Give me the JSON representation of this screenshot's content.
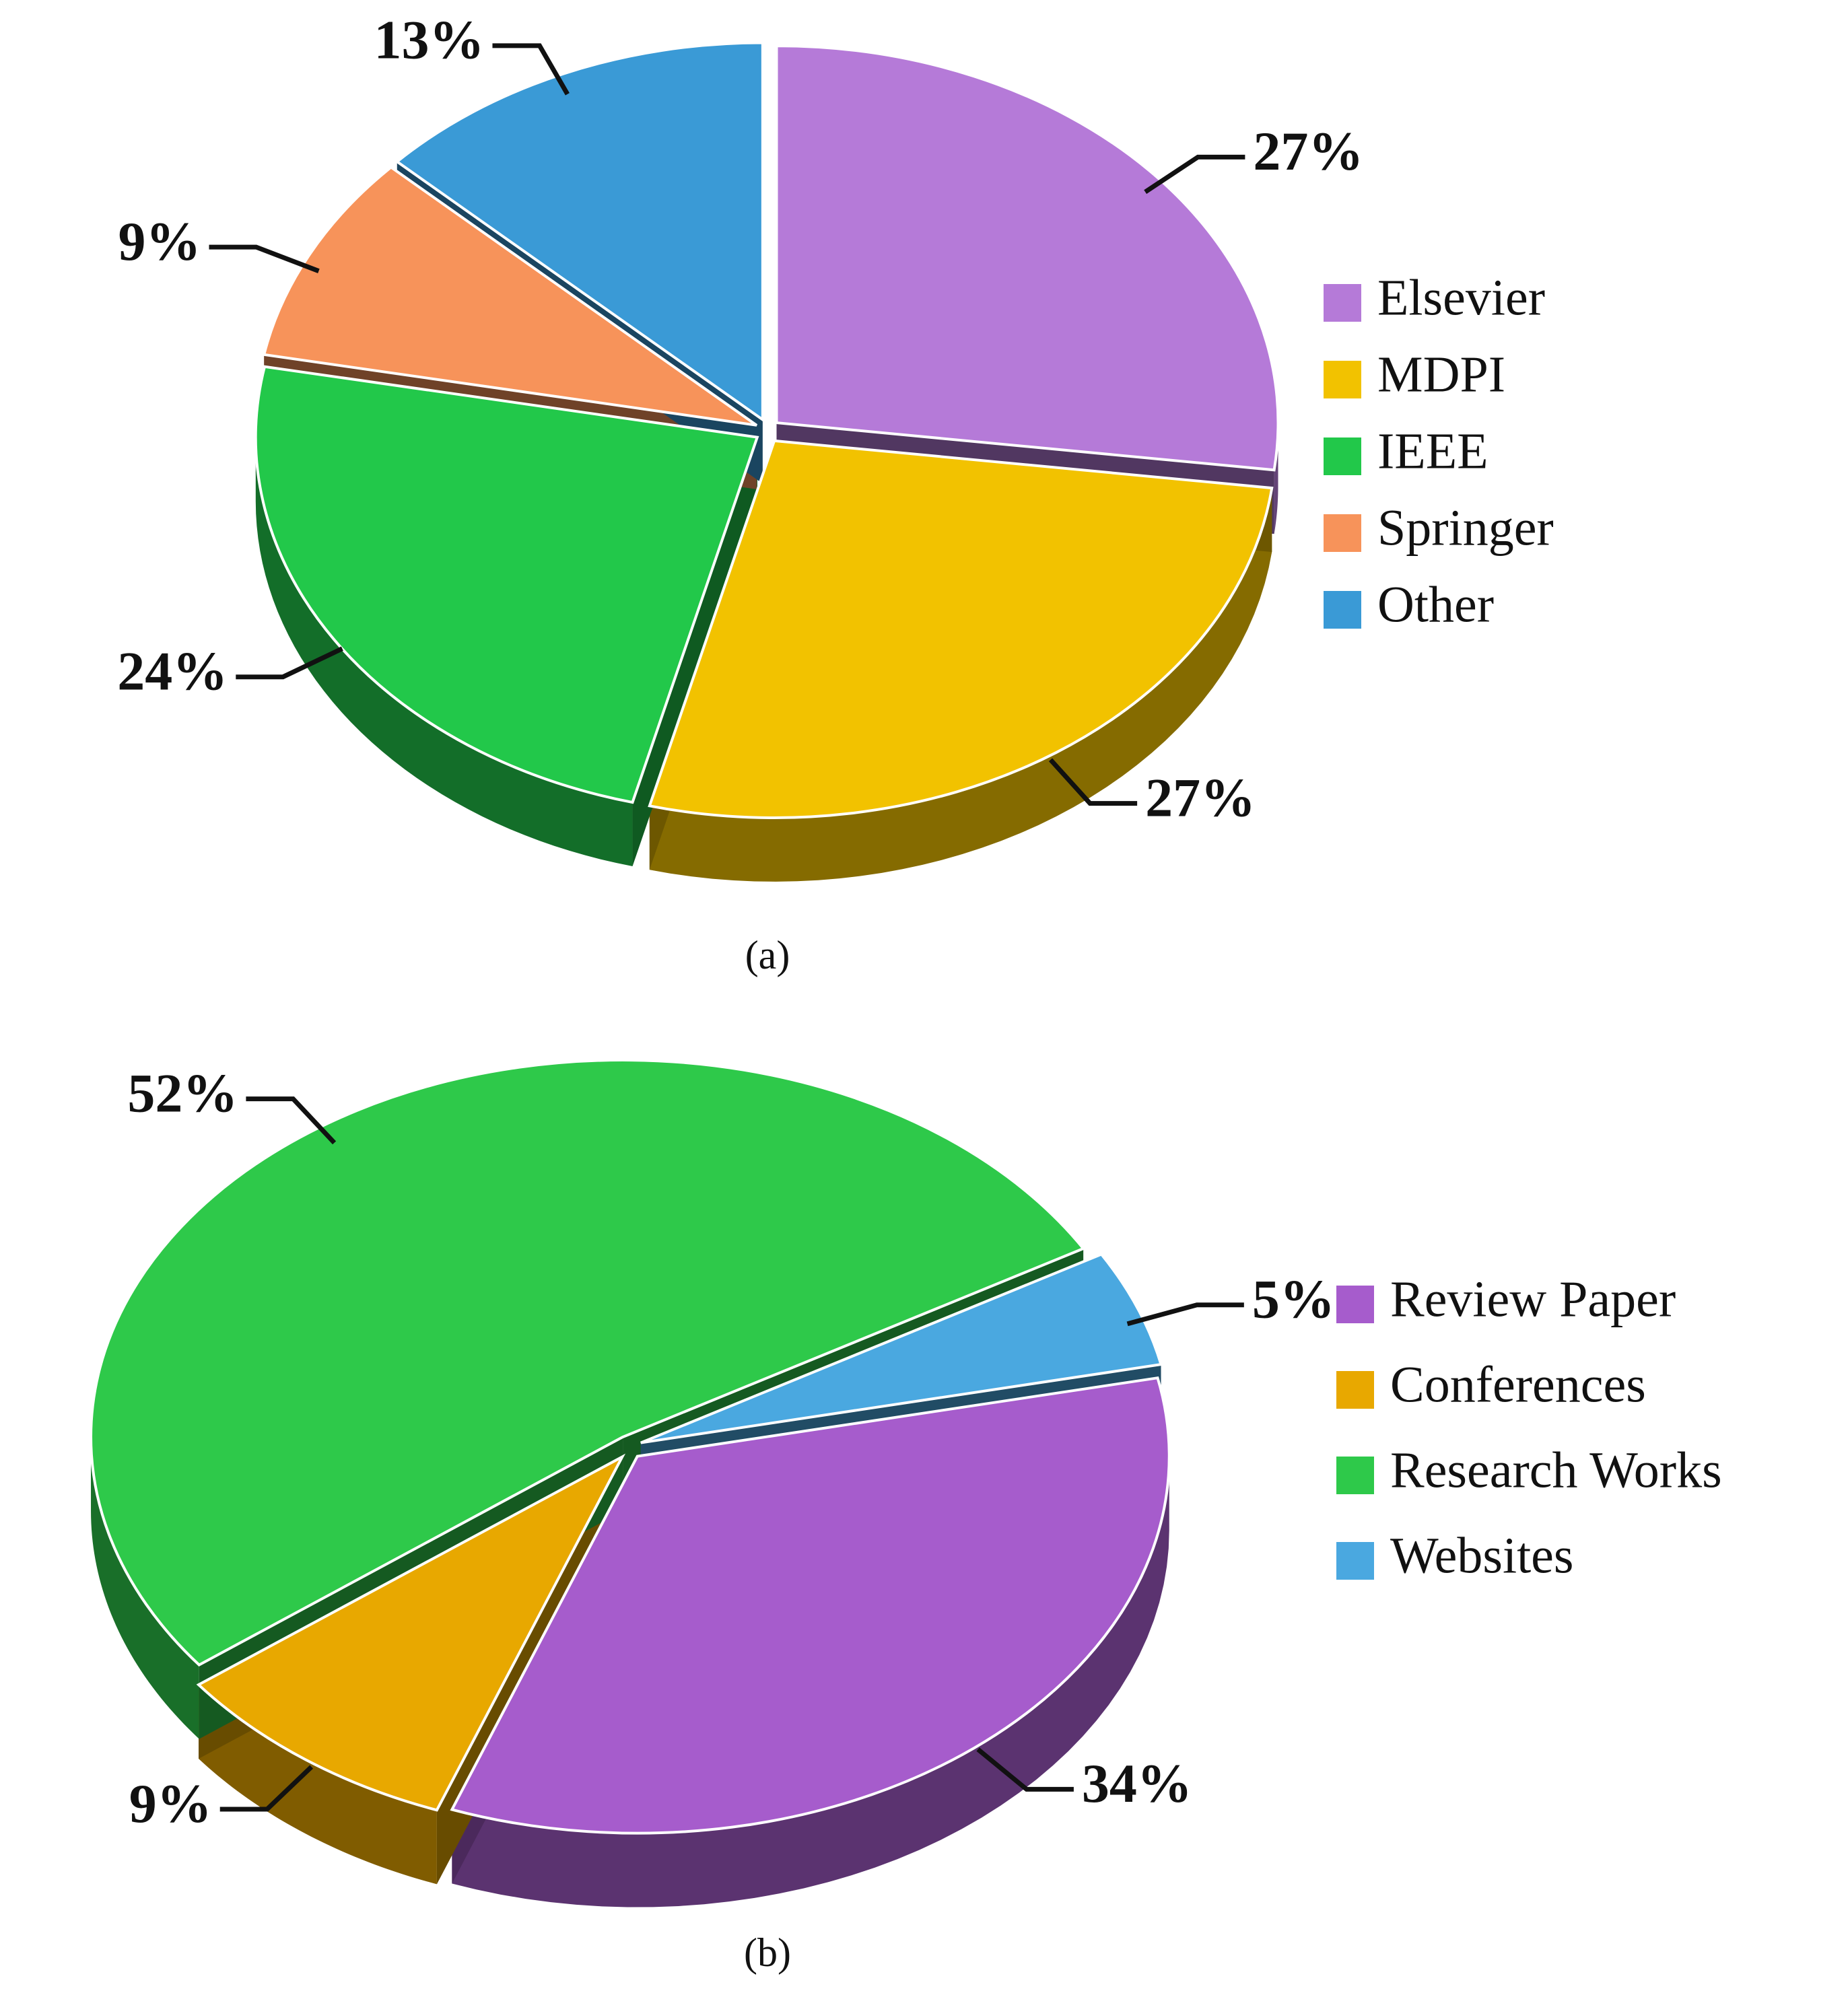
{
  "chart_data": [
    {
      "type": "pie",
      "caption": "(a)",
      "categories": [
        "Elsevier",
        "MDPI",
        "IEEE",
        "Springer",
        "Other"
      ],
      "values": [
        27,
        27,
        24,
        9,
        13
      ],
      "value_labels": [
        "27%",
        "27%",
        "24%",
        "9%",
        "13%"
      ],
      "colors": [
        "#b57ad8",
        "#f2c200",
        "#22c84a",
        "#f7935a",
        "#3a9ad6"
      ]
    },
    {
      "type": "pie",
      "caption": "(b)",
      "categories": [
        "Review Paper",
        "Conferences",
        "Research Works",
        "Websites"
      ],
      "values": [
        34,
        9,
        52,
        5
      ],
      "value_labels": [
        "34%",
        "9%",
        "52%",
        "5%"
      ],
      "colors": [
        "#a65ccc",
        "#e8a800",
        "#2ec94a",
        "#4aa8e0"
      ]
    }
  ]
}
